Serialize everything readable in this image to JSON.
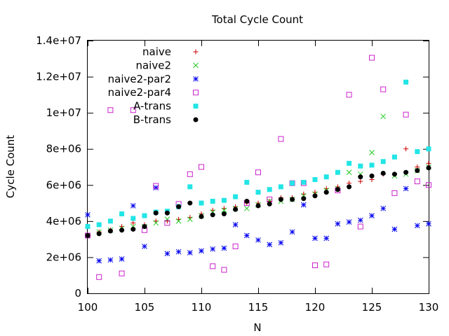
{
  "chart_data": {
    "type": "scatter",
    "title": "Total Cycle Count",
    "xlabel": "N",
    "ylabel": "Cycle Count",
    "xlim": [
      100,
      130
    ],
    "ylim": [
      0,
      14000000
    ],
    "x_ticks": [
      100,
      105,
      110,
      115,
      120,
      125,
      130
    ],
    "x_tick_labels": [
      "100",
      "105",
      "110",
      "115",
      "120",
      "125",
      "130"
    ],
    "y_ticks": [
      0,
      2000000,
      4000000,
      6000000,
      8000000,
      10000000,
      12000000,
      14000000
    ],
    "y_tick_labels": [
      "0",
      "2e+06",
      "4e+06",
      "6e+06",
      "8e+06",
      "1e+07",
      "1.2e+07",
      "1.4e+07"
    ],
    "grid": false,
    "legend_position": "top-left",
    "x": [
      100,
      101,
      102,
      103,
      104,
      105,
      106,
      107,
      108,
      109,
      110,
      111,
      112,
      113,
      114,
      115,
      116,
      117,
      118,
      119,
      120,
      121,
      122,
      123,
      124,
      125,
      126,
      127,
      128,
      129,
      130
    ],
    "series": [
      {
        "name": "naive",
        "marker": "plus",
        "color": "#cc0000",
        "values": [
          3200000,
          3400000,
          3500000,
          3700000,
          3900000,
          3800000,
          4000000,
          4000000,
          4100000,
          4200000,
          4400000,
          4600000,
          4700000,
          4800000,
          5000000,
          5000000,
          5100000,
          5300000,
          5300000,
          5500000,
          5600000,
          5800000,
          5900000,
          6100000,
          6200000,
          6300000,
          6600000,
          6600000,
          8000000,
          7000000,
          7200000
        ]
      },
      {
        "name": "naive2",
        "marker": "cross",
        "color": "#22cc22",
        "values": [
          3200000,
          3400000,
          3500000,
          3600000,
          3700000,
          3700000,
          3900000,
          4100000,
          4000000,
          4100000,
          4300000,
          4500000,
          4600000,
          4700000,
          4700000,
          4900000,
          5100000,
          5100000,
          5200000,
          5400000,
          5500000,
          5700000,
          5800000,
          6700000,
          6600000,
          7800000,
          9800000,
          6500000,
          6600000,
          6800000,
          7000000
        ]
      },
      {
        "name": "naive2-par2",
        "marker": "star",
        "color": "#0000ee",
        "values": [
          4350000,
          1800000,
          1850000,
          1900000,
          4850000,
          2600000,
          5850000,
          2200000,
          2300000,
          2250000,
          2350000,
          2450000,
          2500000,
          3800000,
          3200000,
          2950000,
          2700000,
          2800000,
          3400000,
          4900000,
          3050000,
          3050000,
          3850000,
          3950000,
          4050000,
          4300000,
          4700000,
          3550000,
          5800000,
          3750000,
          3850000
        ]
      },
      {
        "name": "naive2-par4",
        "marker": "open-square",
        "color": "#cc22cc",
        "values": [
          3200000,
          900000,
          10150000,
          1100000,
          10150000,
          3500000,
          5950000,
          3900000,
          4950000,
          6600000,
          7000000,
          1500000,
          1300000,
          2600000,
          5000000,
          6700000,
          5200000,
          8550000,
          6100000,
          6100000,
          1550000,
          1600000,
          5700000,
          11000000,
          3700000,
          13050000,
          11300000,
          5550000,
          9900000,
          6200000,
          6000000
        ]
      },
      {
        "name": "A-trans",
        "marker": "filled-square",
        "color": "#22e5e5",
        "values": [
          3700000,
          3800000,
          4000000,
          4400000,
          4150000,
          4300000,
          4500000,
          4550000,
          4800000,
          5900000,
          5000000,
          5100000,
          5150000,
          5350000,
          6150000,
          5600000,
          5750000,
          5900000,
          6100000,
          6150000,
          6300000,
          6450000,
          6700000,
          7200000,
          7050000,
          7100000,
          7300000,
          7550000,
          11700000,
          7850000,
          8000000
        ]
      },
      {
        "name": "B-trans",
        "marker": "filled-circle",
        "color": "#000000",
        "values": [
          3200000,
          3300000,
          3450000,
          3500000,
          3550000,
          3700000,
          4450000,
          4450000,
          4800000,
          5000000,
          4250000,
          4350000,
          4400000,
          4650000,
          5100000,
          4850000,
          4950000,
          5200000,
          5200000,
          5250000,
          5400000,
          5600000,
          5750000,
          5900000,
          6450000,
          6500000,
          6650000,
          6600000,
          6700000,
          6800000,
          6950000
        ]
      }
    ]
  }
}
